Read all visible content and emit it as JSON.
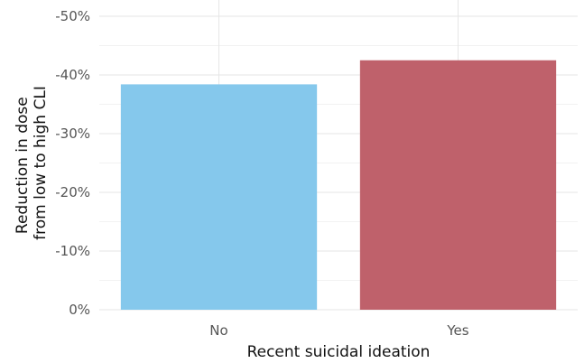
{
  "chart_data": {
    "type": "bar",
    "categories": [
      "No",
      "Yes"
    ],
    "values": [
      -38.4,
      -42.5
    ],
    "colors": [
      "#85c8ec",
      "#bf616b"
    ],
    "xlabel": "Recent suicidal ideation",
    "ylabel_lines": [
      "Reduction in dose",
      "from low to high CLI"
    ],
    "ylim": [
      0,
      -50
    ],
    "y_ticks": [
      0,
      -10,
      -20,
      -30,
      -40,
      -50
    ],
    "y_tick_labels": [
      "0%",
      "-10%",
      "-20%",
      "-30%",
      "-40%",
      "-50%"
    ],
    "grid": true,
    "legend": "none"
  }
}
